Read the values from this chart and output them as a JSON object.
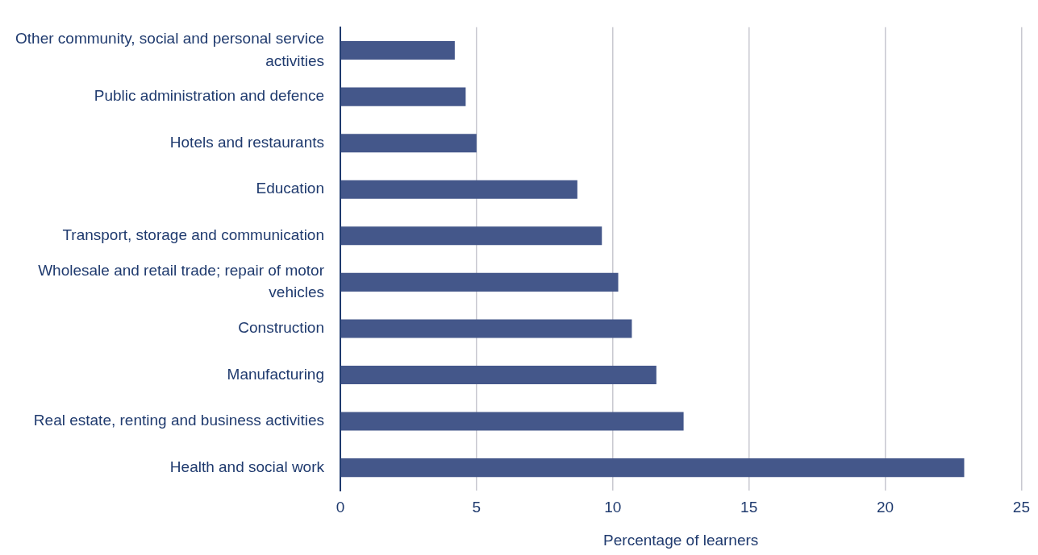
{
  "chart_data": {
    "type": "bar",
    "orientation": "horizontal",
    "xlabel": "Percentage of learners",
    "categories": [
      "Other community, social and personal service activities",
      "Public administration and defence",
      "Hotels and restaurants",
      "Education",
      "Transport, storage and communication",
      "Wholesale and retail trade; repair of motor vehicles",
      "Construction",
      "Manufacturing",
      "Real estate, renting and business activities",
      "Health and social work"
    ],
    "values": [
      4.2,
      4.6,
      5.0,
      8.7,
      9.6,
      10.2,
      10.7,
      11.6,
      12.6,
      22.9
    ],
    "color": "#44578a",
    "xlim": [
      0,
      25
    ],
    "xticks": [
      0,
      5,
      10,
      15,
      20,
      25
    ],
    "grid": "x",
    "legend": false
  }
}
